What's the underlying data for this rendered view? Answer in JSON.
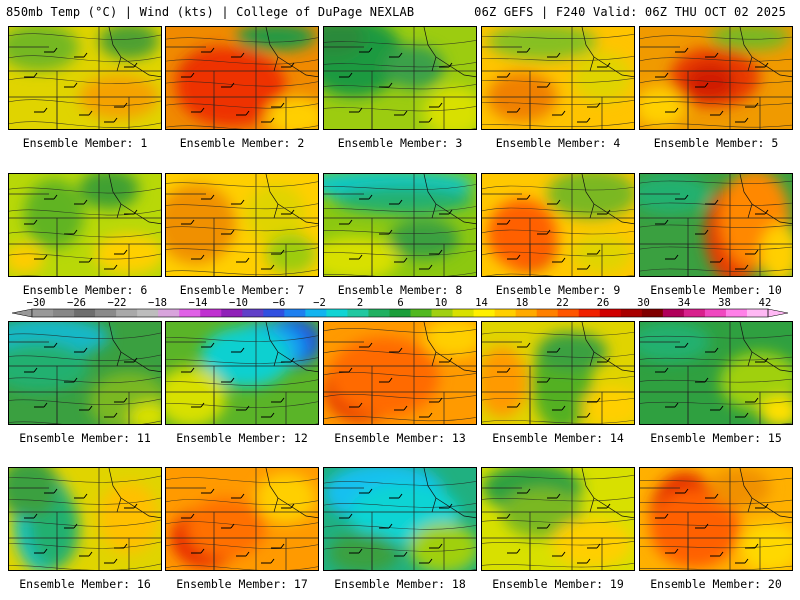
{
  "header": {
    "left": "850mb Temp (°C) | Wind (kts) | College of DuPage NEXLAB",
    "right": "06Z GEFS | F240 Valid: 06Z THU OCT 02 2025"
  },
  "colorbar": {
    "labels": [
      "-30",
      "-26",
      "-22",
      "-18",
      "-14",
      "-10",
      "-6",
      "-2",
      "2",
      "6",
      "10",
      "14",
      "18",
      "22",
      "26",
      "30",
      "34",
      "38",
      "42"
    ],
    "colors": [
      "#999999",
      "#878787",
      "#6e6e6e",
      "#8a8a8a",
      "#a9a9a9",
      "#bdbdbd",
      "#d8a4dc",
      "#e061e6",
      "#c030d0",
      "#9020b8",
      "#6040c8",
      "#3050e0",
      "#1e80f0",
      "#12b4f0",
      "#10d4d4",
      "#20c8a0",
      "#20b060",
      "#1b9e3a",
      "#52b820",
      "#a0d010",
      "#d8e000",
      "#ffef00",
      "#ffcf00",
      "#ffaa00",
      "#ff8000",
      "#ff5500",
      "#f02000",
      "#d00000",
      "#a80000",
      "#800000",
      "#b0005a",
      "#d8208c",
      "#f048c0",
      "#ff80e8",
      "#ffb8f4"
    ]
  },
  "members": [
    {
      "label": "Ensemble Member: 1",
      "base": "#e0d400",
      "blobs": [
        [
          "#74b820",
          30,
          20,
          40,
          24
        ],
        [
          "#4ea030",
          120,
          14,
          30,
          18
        ],
        [
          "#f5a200",
          110,
          70,
          40,
          22
        ]
      ]
    },
    {
      "label": "Ensemble Member: 2",
      "base": "#f08a00",
      "blobs": [
        [
          "#d01010",
          55,
          55,
          45,
          35
        ],
        [
          "#ee3300",
          65,
          60,
          55,
          40
        ],
        [
          "#229944",
          110,
          10,
          40,
          14
        ],
        [
          "#ffcf00",
          130,
          90,
          30,
          20
        ]
      ]
    },
    {
      "label": "Ensemble Member: 3",
      "base": "#9ccc10",
      "blobs": [
        [
          "#1e9a40",
          30,
          30,
          50,
          40
        ],
        [
          "#3aa04a",
          90,
          40,
          30,
          22
        ],
        [
          "#d8e000",
          130,
          85,
          30,
          25
        ],
        [
          "#2b8a3a",
          10,
          10,
          30,
          20
        ]
      ]
    },
    {
      "label": "Ensemble Member: 4",
      "base": "#ffc400",
      "blobs": [
        [
          "#86c020",
          60,
          15,
          55,
          18
        ],
        [
          "#f08000",
          40,
          70,
          35,
          25
        ],
        [
          "#e0d400",
          120,
          50,
          30,
          25
        ]
      ]
    },
    {
      "label": "Ensemble Member: 5",
      "base": "#f09a00",
      "blobs": [
        [
          "#e83a00",
          75,
          50,
          45,
          30
        ],
        [
          "#d01a00",
          70,
          55,
          25,
          18
        ],
        [
          "#7ab820",
          110,
          10,
          40,
          14
        ],
        [
          "#ffd000",
          20,
          80,
          25,
          20
        ]
      ]
    },
    {
      "label": "Ensemble Member: 6",
      "base": "#b8d808",
      "blobs": [
        [
          "#60b420",
          45,
          40,
          30,
          35
        ],
        [
          "#3fa030",
          100,
          15,
          30,
          20
        ],
        [
          "#ffd000",
          120,
          80,
          35,
          20
        ],
        [
          "#ffcc00",
          15,
          85,
          20,
          15
        ]
      ]
    },
    {
      "label": "Ensemble Member: 7",
      "base": "#ffcf00",
      "blobs": [
        [
          "#f09000",
          30,
          50,
          40,
          40
        ],
        [
          "#e0d400",
          110,
          40,
          30,
          30
        ],
        [
          "#9ccc10",
          125,
          80,
          25,
          20
        ]
      ]
    },
    {
      "label": "Ensemble Member: 8",
      "base": "#8cc810",
      "blobs": [
        [
          "#10c8c8",
          60,
          10,
          90,
          14
        ],
        [
          "#20b070",
          80,
          26,
          70,
          14
        ],
        [
          "#d8e000",
          30,
          85,
          45,
          22
        ],
        [
          "#3aa040",
          100,
          65,
          35,
          20
        ]
      ]
    },
    {
      "label": "Ensemble Member: 9",
      "base": "#ffc800",
      "blobs": [
        [
          "#e02000",
          45,
          70,
          30,
          28
        ],
        [
          "#ff6000",
          40,
          60,
          35,
          35
        ],
        [
          "#7ab820",
          110,
          20,
          45,
          25
        ],
        [
          "#e0d400",
          120,
          80,
          30,
          20
        ]
      ]
    },
    {
      "label": "Ensemble Member: 10",
      "base": "#3aa040",
      "blobs": [
        [
          "#e83a00",
          95,
          60,
          30,
          50
        ],
        [
          "#ff8800",
          115,
          45,
          35,
          50
        ],
        [
          "#20b070",
          30,
          20,
          40,
          20
        ],
        [
          "#ffcf00",
          140,
          80,
          20,
          30
        ]
      ]
    },
    {
      "label": "Ensemble Member: 11",
      "base": "#3aa040",
      "blobs": [
        [
          "#18b8c8",
          40,
          15,
          60,
          20
        ],
        [
          "#20b070",
          30,
          45,
          50,
          25
        ],
        [
          "#7ab820",
          120,
          80,
          40,
          30
        ],
        [
          "#d8e000",
          140,
          95,
          20,
          15
        ]
      ]
    },
    {
      "label": "Ensemble Member: 12",
      "base": "#5ab428",
      "blobs": [
        [
          "#1f50e0",
          125,
          20,
          30,
          25
        ],
        [
          "#12a0f0",
          100,
          25,
          40,
          25
        ],
        [
          "#10d0d0",
          80,
          35,
          45,
          30
        ],
        [
          "#d8e000",
          25,
          75,
          35,
          30
        ]
      ]
    },
    {
      "label": "Ensemble Member: 13",
      "base": "#ff9a00",
      "blobs": [
        [
          "#e02800",
          40,
          65,
          40,
          35
        ],
        [
          "#ff6a00",
          60,
          55,
          55,
          40
        ],
        [
          "#ffcf00",
          130,
          15,
          30,
          20
        ]
      ]
    },
    {
      "label": "Ensemble Member: 14",
      "base": "#e0d400",
      "blobs": [
        [
          "#52b020",
          80,
          60,
          30,
          50
        ],
        [
          "#3aa040",
          90,
          30,
          35,
          20
        ],
        [
          "#ff9a00",
          20,
          60,
          25,
          35
        ],
        [
          "#ffcf00",
          130,
          85,
          30,
          20
        ]
      ]
    },
    {
      "label": "Ensemble Member: 15",
      "base": "#2fa040",
      "blobs": [
        [
          "#a0d010",
          120,
          60,
          40,
          30
        ],
        [
          "#20b070",
          30,
          20,
          40,
          20
        ],
        [
          "#ffe000",
          140,
          90,
          20,
          15
        ]
      ]
    },
    {
      "label": "Ensemble Member: 16",
      "base": "#e0d400",
      "blobs": [
        [
          "#18c0c0",
          35,
          55,
          30,
          50
        ],
        [
          "#20b070",
          45,
          60,
          25,
          40
        ],
        [
          "#3aa040",
          20,
          20,
          30,
          30
        ],
        [
          "#ffc000",
          120,
          50,
          30,
          35
        ]
      ]
    },
    {
      "label": "Ensemble Member: 17",
      "base": "#ff9a00",
      "blobs": [
        [
          "#e82a00",
          40,
          70,
          35,
          30
        ],
        [
          "#ffcf00",
          120,
          30,
          30,
          25
        ],
        [
          "#ff7000",
          60,
          60,
          40,
          30
        ]
      ]
    },
    {
      "label": "Ensemble Member: 18",
      "base": "#20b080",
      "blobs": [
        [
          "#12c0f0",
          60,
          25,
          60,
          30
        ],
        [
          "#10d4d4",
          80,
          45,
          55,
          30
        ],
        [
          "#a0d010",
          120,
          80,
          35,
          25
        ],
        [
          "#3aa040",
          40,
          85,
          35,
          20
        ]
      ]
    },
    {
      "label": "Ensemble Member: 19",
      "base": "#d8e000",
      "blobs": [
        [
          "#2fa040",
          50,
          20,
          50,
          25
        ],
        [
          "#7ab820",
          60,
          45,
          40,
          25
        ],
        [
          "#ffcf00",
          110,
          75,
          40,
          25
        ]
      ]
    },
    {
      "label": "Ensemble Member: 20",
      "base": "#ffb000",
      "blobs": [
        [
          "#e02000",
          45,
          50,
          35,
          45
        ],
        [
          "#ff6000",
          55,
          60,
          45,
          40
        ],
        [
          "#ffd800",
          130,
          80,
          30,
          25
        ],
        [
          "#f09000",
          100,
          20,
          30,
          20
        ]
      ]
    }
  ]
}
